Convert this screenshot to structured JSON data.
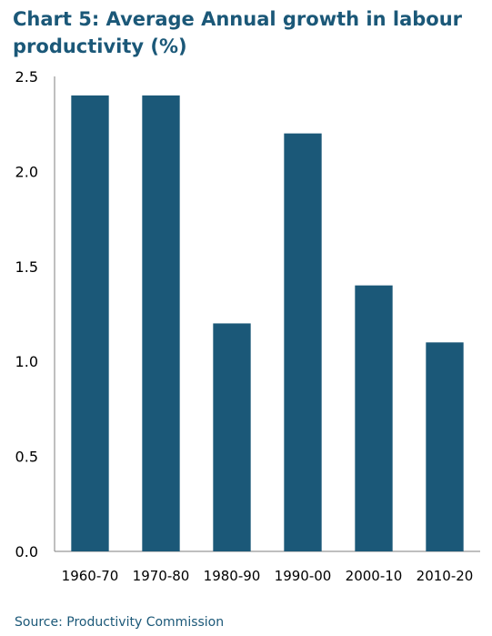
{
  "title_lines": [
    "Chart 5: Average Annual growth in labour",
    "productivity (%)"
  ],
  "source": "Source: Productivity Commission",
  "colors": {
    "bar": "#1b5878",
    "title": "#1b5878",
    "axis_text": "#000000"
  },
  "chart_data": {
    "type": "bar",
    "title": "Chart 5: Average Annual growth in labour productivity (%)",
    "categories": [
      "1960-70",
      "1970-80",
      "1980-90",
      "1990-00",
      "2000-10",
      "2010-20"
    ],
    "values": [
      2.4,
      2.4,
      1.2,
      2.2,
      1.4,
      1.1
    ],
    "ylim": [
      0,
      2.5
    ],
    "yticks": [
      "0.0",
      "0.5",
      "1.0",
      "1.5",
      "2.0",
      "2.5"
    ],
    "grid": false,
    "legend": "none"
  }
}
